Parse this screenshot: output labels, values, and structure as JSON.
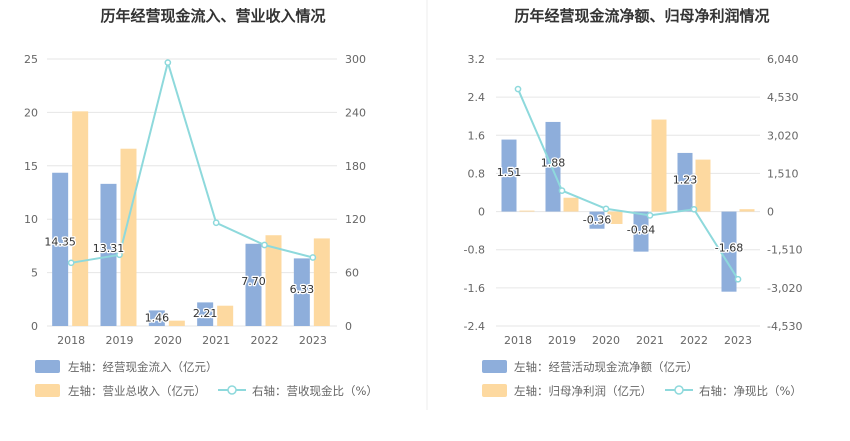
{
  "colors": {
    "cashflow_bar": "#8eaedb",
    "revenue_bar": "#fdd9a0",
    "ratio_line": "#8ed9dc",
    "grid": "#e6e6e6",
    "divider": "#eeeeee"
  },
  "chart_data": [
    {
      "type": "bar",
      "title": "历年经营现金流入、营业收入情况",
      "categories": [
        "2018",
        "2019",
        "2020",
        "2021",
        "2022",
        "2023"
      ],
      "left_axis": {
        "ylim": [
          0,
          25
        ],
        "ticks": [
          "0",
          "5",
          "10",
          "15",
          "20",
          "25"
        ]
      },
      "right_axis": {
        "ylim": [
          0,
          300
        ],
        "ticks": [
          "0",
          "60",
          "120",
          "180",
          "240",
          "300"
        ]
      },
      "series": [
        {
          "name": "左轴：经营现金流入（亿元）",
          "type": "bar",
          "axis": "left",
          "values": [
            14.35,
            13.31,
            1.46,
            2.21,
            7.7,
            6.33
          ],
          "labels": [
            "14.35",
            "13.31",
            "1.46",
            "2.21",
            "7.70",
            "6.33"
          ]
        },
        {
          "name": "左轴：营业总收入（亿元）",
          "type": "bar",
          "axis": "left",
          "values": [
            20.1,
            16.6,
            0.5,
            1.9,
            8.5,
            8.2
          ]
        },
        {
          "name": "右轴：营收现金比（%）",
          "type": "line",
          "axis": "right",
          "values": [
            71,
            80,
            296,
            116,
            91,
            77
          ]
        }
      ]
    },
    {
      "type": "bar",
      "title": "历年经营现金流净额、归母净利润情况",
      "categories": [
        "2018",
        "2019",
        "2020",
        "2021",
        "2022",
        "2023"
      ],
      "left_axis": {
        "ylim": [
          -2.4,
          3.2
        ],
        "ticks": [
          "-2.4",
          "-1.6",
          "-0.8",
          "0",
          "0.8",
          "1.6",
          "2.4",
          "3.2"
        ]
      },
      "right_axis": {
        "ylim": [
          -4530,
          6040
        ],
        "ticks": [
          "-4,530",
          "-3,020",
          "-1,510",
          "0",
          "1,510",
          "3,020",
          "4,530",
          "6,040"
        ]
      },
      "series": [
        {
          "name": "左轴：经营活动现金流净额（亿元）",
          "type": "bar",
          "axis": "left",
          "values": [
            1.51,
            1.88,
            -0.36,
            -0.84,
            1.23,
            -1.68
          ],
          "labels": [
            "1.51",
            "1.88",
            "-0.36",
            "-0.84",
            "1.23",
            "-1.68"
          ]
        },
        {
          "name": "左轴：归母净利润（亿元）",
          "type": "bar",
          "axis": "left",
          "values": [
            0.02,
            0.29,
            -0.26,
            1.93,
            1.09,
            0.05
          ]
        },
        {
          "name": "右轴：净现比（%）",
          "type": "line",
          "axis": "right",
          "values": [
            4850,
            830,
            110,
            -150,
            90,
            -2680
          ]
        }
      ]
    }
  ]
}
